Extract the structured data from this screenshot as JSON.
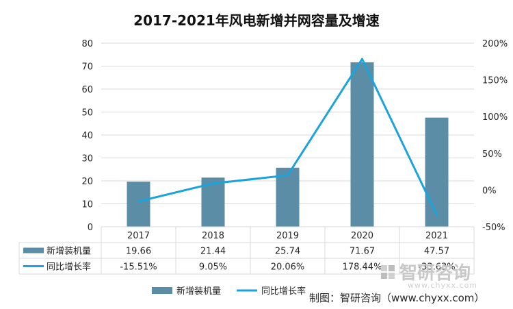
{
  "title": "2017-2021年风电新增并网容量及增速",
  "source": "制图：智研咨询（www.chyxx.com）",
  "watermark": {
    "brand": "智研咨询",
    "url": "www.chyxx.com"
  },
  "colors": {
    "bar": "#5b8ea6",
    "line": "#1aa3dc",
    "grid": "#d9d9d9",
    "text": "#262626"
  },
  "chart_data": {
    "type": "bar",
    "title": "2017-2021年风电新增并网容量及增速",
    "categories": [
      "2017",
      "2018",
      "2019",
      "2020",
      "2021"
    ],
    "series": [
      {
        "name": "新增装机量",
        "type": "bar",
        "axis": "left",
        "values": [
          19.66,
          21.44,
          25.74,
          71.67,
          47.57
        ],
        "labels": [
          "19.66",
          "21.44",
          "25.74",
          "71.67",
          "47.57"
        ]
      },
      {
        "name": "同比增长率",
        "type": "line",
        "axis": "right",
        "values": [
          -15.51,
          9.05,
          20.06,
          178.44,
          -33.63
        ],
        "labels": [
          "-15.51%",
          "9.05%",
          "20.06%",
          "178.44%",
          "-33.63%"
        ]
      }
    ],
    "y_left": {
      "min": 0,
      "max": 80,
      "step": 10,
      "ticks": [
        "0",
        "10",
        "20",
        "30",
        "40",
        "50",
        "60",
        "70",
        "80"
      ]
    },
    "y_right": {
      "min": -50,
      "max": 200,
      "step": 50,
      "ticks": [
        "-50%",
        "0%",
        "50%",
        "100%",
        "150%",
        "200%"
      ]
    },
    "grid": true,
    "legend_position": "bottom",
    "data_table": true
  }
}
